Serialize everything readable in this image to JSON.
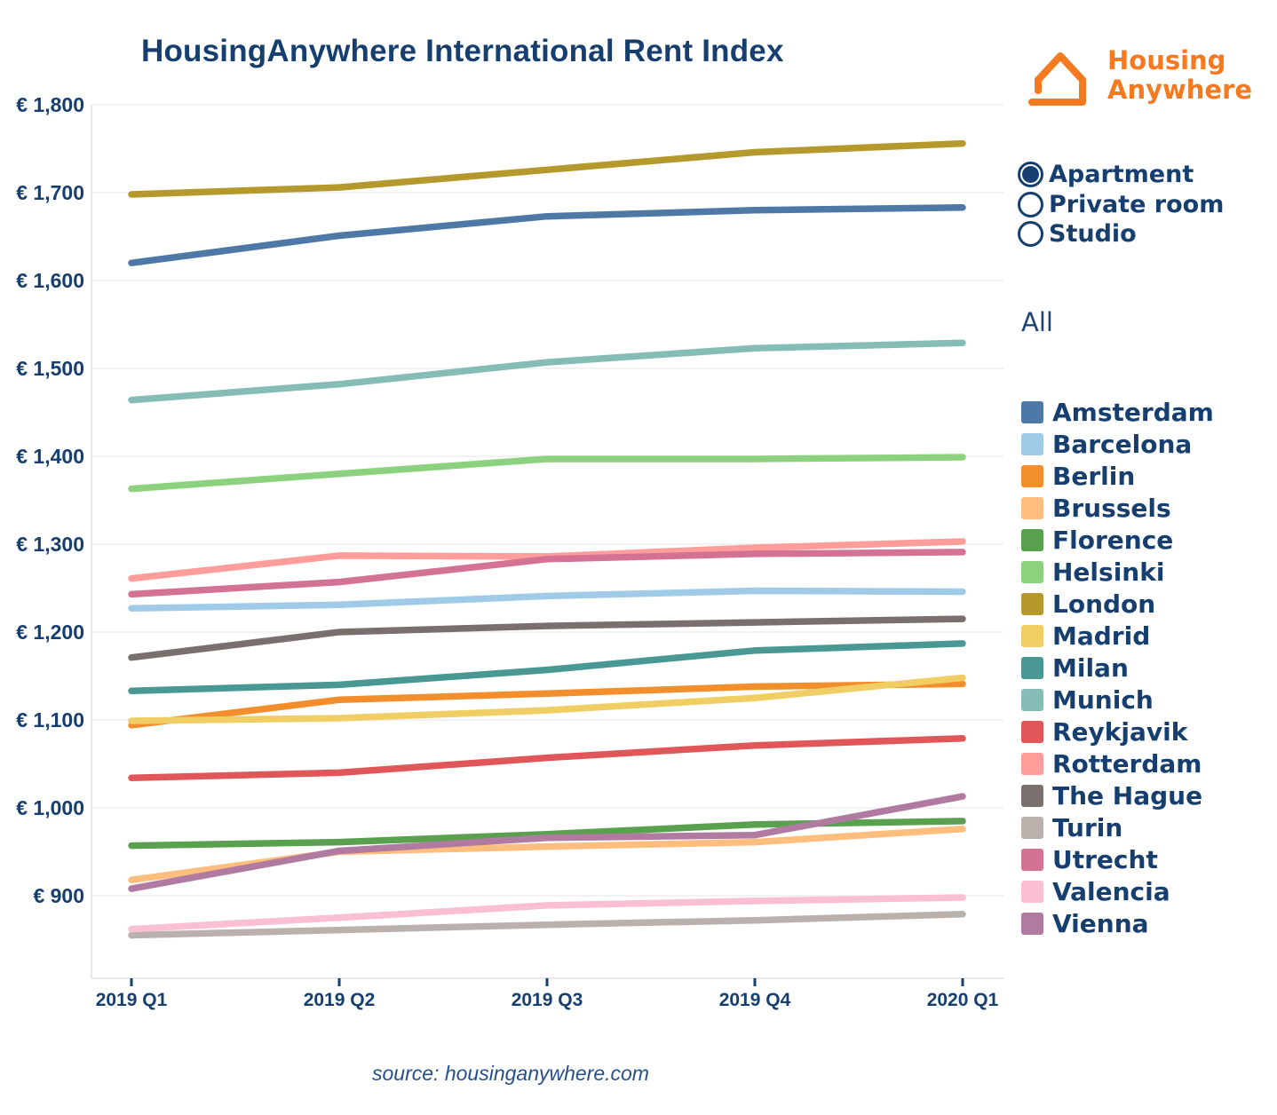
{
  "logo": {
    "line1": "Housing",
    "line2": "Anywhere"
  },
  "property_type_options": [
    {
      "label": "Apartment",
      "selected": true
    },
    {
      "label": "Private room",
      "selected": false
    },
    {
      "label": "Studio",
      "selected": false
    }
  ],
  "city_filter": {
    "value": "All"
  },
  "source_note": "source: housinganywhere.com",
  "colors": {
    "navy": "#163F6F",
    "orange": "#F4791F",
    "gridline": "#EDEDED",
    "axis_line": "#E0E0E0"
  },
  "chart_data": {
    "type": "line",
    "title": "HousingAnywhere International Rent Index",
    "categories": [
      "2019 Q1",
      "2019 Q2",
      "2019 Q3",
      "2019 Q4",
      "2020 Q1"
    ],
    "yticks": [
      1800,
      1700,
      1600,
      1500,
      1400,
      1300,
      1200,
      1100,
      1000,
      900
    ],
    "y_axis_tick_labels": [
      "€ 1,800",
      "€ 1,700",
      "€ 1,600",
      "€ 1,500",
      "€ 1,400",
      "€ 1,300",
      "€ 1,200",
      "€ 1,100",
      "€ 1,000",
      "€ 900"
    ],
    "ylim": [
      810,
      1800
    ],
    "currency": "EUR",
    "grid": true,
    "legend_position": "right",
    "series": [
      {
        "name": "Amsterdam",
        "color": "#4E79A7",
        "values": [
          1620,
          1651,
          1673,
          1680,
          1683
        ]
      },
      {
        "name": "Barcelona",
        "color": "#A0CBE8",
        "values": [
          1227,
          1231,
          1241,
          1247,
          1246
        ]
      },
      {
        "name": "Berlin",
        "color": "#F28E2B",
        "values": [
          1094,
          1123,
          1130,
          1138,
          1141
        ]
      },
      {
        "name": "Brussels",
        "color": "#FFBE7D",
        "values": [
          918,
          950,
          956,
          961,
          976
        ]
      },
      {
        "name": "Florence",
        "color": "#59A14F",
        "values": [
          957,
          961,
          970,
          981,
          985
        ]
      },
      {
        "name": "Helsinki",
        "color": "#8CD17D",
        "values": [
          1363,
          1380,
          1397,
          1397,
          1399
        ]
      },
      {
        "name": "London",
        "color": "#B6992D",
        "values": [
          1698,
          1706,
          1726,
          1746,
          1756
        ]
      },
      {
        "name": "Madrid",
        "color": "#F1CE63",
        "values": [
          1099,
          1102,
          1111,
          1125,
          1148
        ]
      },
      {
        "name": "Milan",
        "color": "#499894",
        "values": [
          1133,
          1140,
          1157,
          1179,
          1187
        ]
      },
      {
        "name": "Munich",
        "color": "#86BCB6",
        "values": [
          1464,
          1482,
          1507,
          1523,
          1529
        ]
      },
      {
        "name": "Reykjavik",
        "color": "#E15759",
        "values": [
          1034,
          1040,
          1057,
          1071,
          1079
        ]
      },
      {
        "name": "Rotterdam",
        "color": "#FF9D9A",
        "values": [
          1261,
          1287,
          1286,
          1296,
          1303
        ]
      },
      {
        "name": "The Hague",
        "color": "#79706E",
        "values": [
          1171,
          1200,
          1207,
          1211,
          1215
        ]
      },
      {
        "name": "Turin",
        "color": "#BAB0AC",
        "values": [
          855,
          861,
          867,
          872,
          879
        ]
      },
      {
        "name": "Utrecht",
        "color": "#D37295",
        "values": [
          1243,
          1257,
          1283,
          1289,
          1291
        ]
      },
      {
        "name": "Valencia",
        "color": "#FABFD2",
        "values": [
          862,
          875,
          889,
          894,
          898
        ]
      },
      {
        "name": "Vienna",
        "color": "#B07AA1",
        "values": [
          908,
          951,
          966,
          969,
          1013
        ]
      }
    ]
  }
}
